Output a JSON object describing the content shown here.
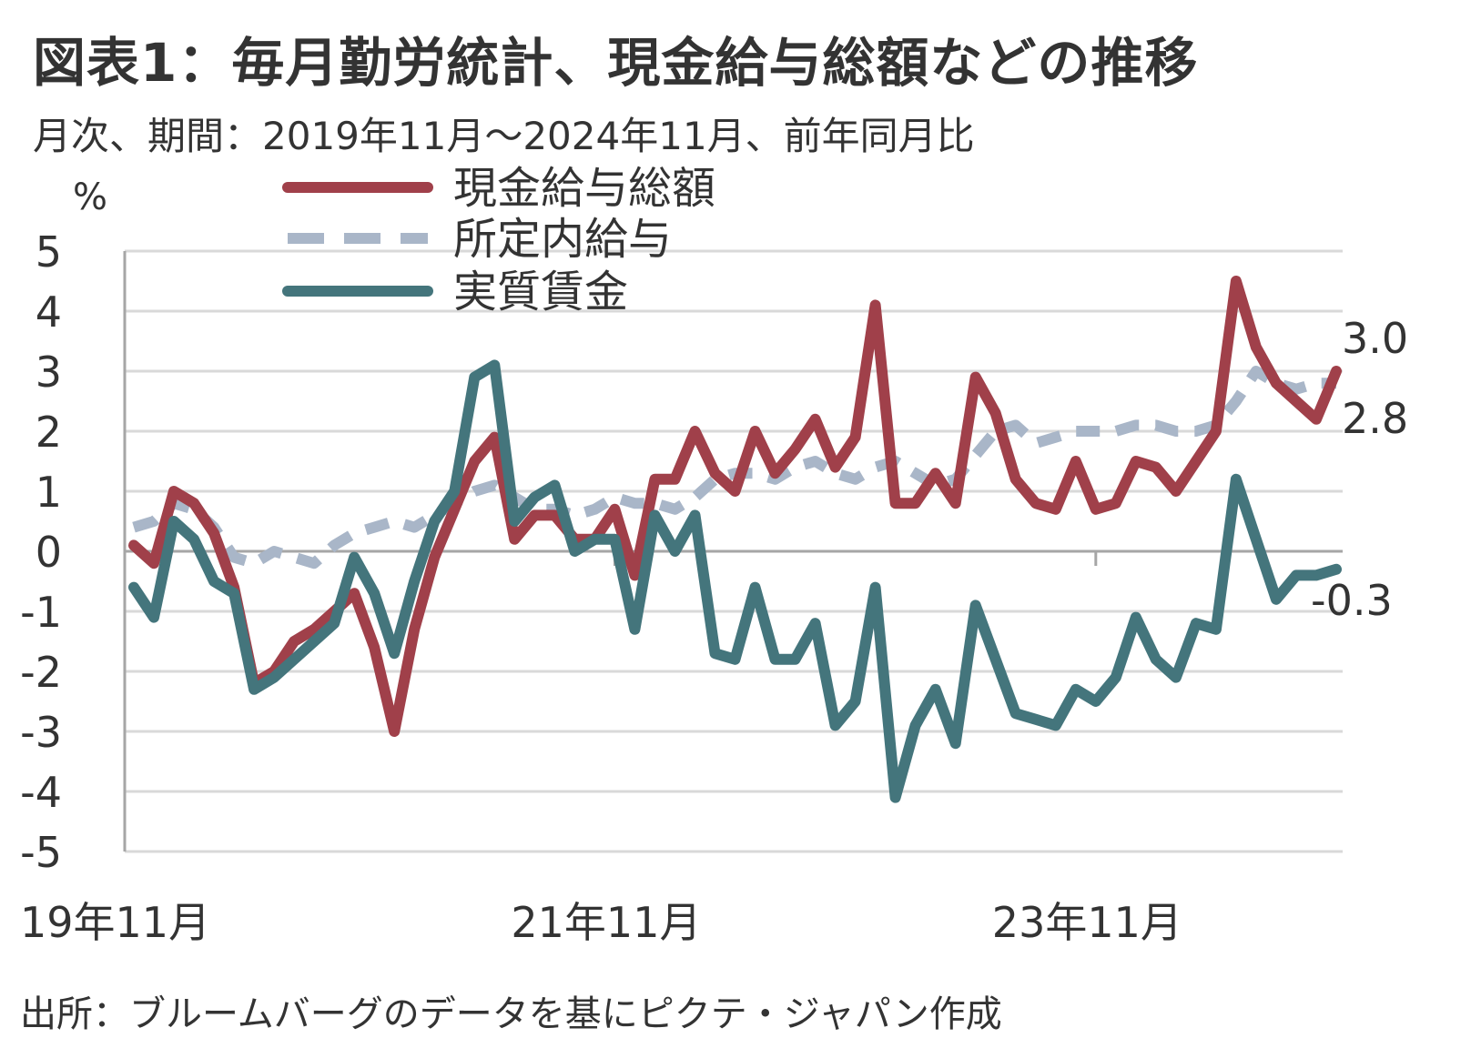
{
  "title": "図表1：毎月勤労統計、現金給与総額などの推移",
  "subtitle": "月次、期間：2019年11月～2024年11月、前年同月比",
  "source": "出所：ブルームバーグのデータを基にピクテ・ジャパン作成",
  "chart_data": {
    "type": "line",
    "ylabel": "%",
    "ylim": [
      -5,
      5
    ],
    "yticks": [
      "5",
      "4",
      "3",
      "2",
      "1",
      "0",
      "-1",
      "-2",
      "-3",
      "-4",
      "-5"
    ],
    "ytick_values": [
      5,
      4,
      3,
      2,
      1,
      0,
      -1,
      -2,
      -3,
      -4,
      -5
    ],
    "xtick_labels": [
      "19年11月",
      "21年11月",
      "23年11月"
    ],
    "xtick_index": [
      0,
      24,
      48
    ],
    "grid": true,
    "legend_position": "top-center",
    "colors": {
      "total": "#a0404a",
      "scheduled": "#a9b6c8",
      "real": "#44757c",
      "grid": "#d9d9d9",
      "axis": "#a6a6a6"
    },
    "series": [
      {
        "key": "total",
        "name": "現金給与総額",
        "style": "solid",
        "values": [
          0.1,
          -0.2,
          1.0,
          0.8,
          0.3,
          -0.6,
          -2.2,
          -2.0,
          -1.5,
          -1.3,
          -1.0,
          -0.7,
          -1.6,
          -3.0,
          -1.3,
          -0.1,
          0.7,
          1.5,
          1.9,
          0.2,
          0.6,
          0.6,
          0.2,
          0.2,
          0.7,
          -0.4,
          1.2,
          1.2,
          2.0,
          1.3,
          1.0,
          2.0,
          1.3,
          1.7,
          2.2,
          1.4,
          1.9,
          4.1,
          0.8,
          0.8,
          1.3,
          0.8,
          2.9,
          2.3,
          1.2,
          0.8,
          0.7,
          1.5,
          0.7,
          0.8,
          1.5,
          1.4,
          1.0,
          1.5,
          2.0,
          4.5,
          3.4,
          2.8,
          2.5,
          2.2,
          3.0
        ]
      },
      {
        "key": "scheduled",
        "name": "所定内給与",
        "style": "dashed",
        "values": [
          0.4,
          0.5,
          0.8,
          0.7,
          0.4,
          -0.1,
          -0.2,
          0.0,
          -0.1,
          -0.2,
          0.1,
          0.3,
          0.4,
          0.5,
          0.4,
          0.6,
          0.8,
          1.0,
          1.1,
          0.9,
          0.7,
          0.7,
          0.6,
          0.7,
          0.9,
          0.8,
          0.8,
          0.7,
          0.9,
          1.2,
          1.3,
          1.3,
          1.2,
          1.4,
          1.5,
          1.3,
          1.2,
          1.4,
          1.5,
          1.3,
          1.1,
          1.2,
          1.6,
          2.0,
          2.1,
          1.8,
          1.9,
          2.0,
          2.0,
          2.0,
          2.1,
          2.1,
          2.0,
          2.0,
          2.1,
          2.5,
          3.0,
          2.8,
          2.7,
          2.8,
          2.8
        ]
      },
      {
        "key": "real",
        "name": "実質賃金",
        "style": "solid",
        "values": [
          -0.6,
          -1.1,
          0.5,
          0.2,
          -0.5,
          -0.7,
          -2.3,
          -2.1,
          -1.8,
          -1.5,
          -1.2,
          -0.1,
          -0.7,
          -1.7,
          -0.5,
          0.5,
          1.0,
          2.9,
          3.1,
          0.5,
          0.9,
          1.1,
          0.0,
          0.2,
          0.2,
          -1.3,
          0.6,
          0.0,
          0.6,
          -1.7,
          -1.8,
          -0.6,
          -1.8,
          -1.8,
          -1.2,
          -2.9,
          -2.5,
          -0.6,
          -4.1,
          -2.9,
          -2.3,
          -3.2,
          -0.9,
          -1.8,
          -2.7,
          -2.8,
          -2.9,
          -2.3,
          -2.5,
          -2.1,
          -1.1,
          -1.8,
          -2.1,
          -1.2,
          -1.3,
          1.2,
          0.2,
          -0.8,
          -0.4,
          -0.4,
          -0.3
        ]
      }
    ],
    "end_labels": [
      {
        "series": "total",
        "text": "3.0"
      },
      {
        "series": "scheduled",
        "text": "2.8"
      },
      {
        "series": "real",
        "text": "-0.3"
      }
    ]
  }
}
